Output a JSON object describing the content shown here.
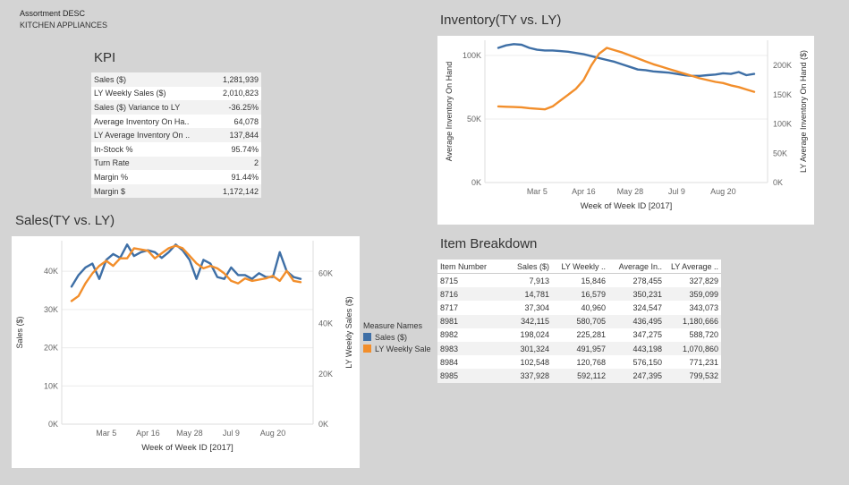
{
  "header": {
    "title": "Assortment DESC",
    "subtitle": "KITCHEN APPLIANCES"
  },
  "kpi": {
    "title": "KPI",
    "rows": [
      {
        "label": "Sales ($)",
        "value": "1,281,939"
      },
      {
        "label": "LY Weekly Sales ($)",
        "value": "2,010,823"
      },
      {
        "label": "Sales ($) Variance to  LY",
        "value": "-36.25%"
      },
      {
        "label": "Average Inventory On Ha..",
        "value": "64,078"
      },
      {
        "label": "LY Average Inventory On ..",
        "value": "137,844"
      },
      {
        "label": "In-Stock %",
        "value": "95.74%"
      },
      {
        "label": "Turn Rate",
        "value": "2"
      },
      {
        "label": "Margin %",
        "value": "91.44%"
      },
      {
        "label": "Margin $",
        "value": "1,172,142"
      }
    ]
  },
  "item_breakdown": {
    "title": "Item Breakdown",
    "columns": [
      "Item Number",
      "Sales ($)",
      "LY Weekly ..",
      "Average In..",
      "LY Average .."
    ],
    "rows": [
      [
        "8715",
        "7,913",
        "15,846",
        "278,455",
        "327,829"
      ],
      [
        "8716",
        "14,781",
        "16,579",
        "350,231",
        "359,099"
      ],
      [
        "8717",
        "37,304",
        "40,960",
        "324,547",
        "343,073"
      ],
      [
        "8981",
        "342,115",
        "580,705",
        "436,495",
        "1,180,666"
      ],
      [
        "8982",
        "198,024",
        "225,281",
        "347,275",
        "588,720"
      ],
      [
        "8983",
        "301,324",
        "491,957",
        "443,198",
        "1,070,860"
      ],
      [
        "8984",
        "102,548",
        "120,768",
        "576,150",
        "771,231"
      ],
      [
        "8985",
        "337,928",
        "592,112",
        "247,395",
        "799,532"
      ]
    ]
  },
  "legend": {
    "title": "Measure Names",
    "items": [
      {
        "label": "Sales ($)",
        "color": "#3e6fa6"
      },
      {
        "label": "LY Weekly Sale",
        "color": "#f28e2b"
      }
    ]
  },
  "chart_data": [
    {
      "id": "inventory",
      "type": "line",
      "title": "Inventory(TY vs. LY)",
      "xlabel": "Week of Week ID [2017]",
      "x_ticks": [
        "Mar 5",
        "Apr 16",
        "May 28",
        "Jul 9",
        "Aug 20"
      ],
      "x_tick_index": [
        5,
        11,
        17,
        23,
        29
      ],
      "x_count": 34,
      "y_left": {
        "label": "Average Inventory On Hand",
        "ticks": [
          "0K",
          "50K",
          "100K"
        ],
        "tick_values": [
          0,
          50000,
          100000
        ],
        "range": [
          0,
          112000
        ]
      },
      "y_right": {
        "label": "LY Average Inventory On Hand ($)",
        "ticks": [
          "0K",
          "50K",
          "100K",
          "150K",
          "200K"
        ],
        "tick_values": [
          0,
          50000,
          100000,
          150000,
          200000
        ],
        "range": [
          0,
          243000
        ]
      },
      "series": [
        {
          "name": "Sales ($)",
          "axis": "left",
          "color": "#3e6fa6",
          "values": [
            106000,
            108000,
            109000,
            108500,
            106000,
            104500,
            104000,
            104000,
            103500,
            103000,
            102000,
            101000,
            99500,
            98000,
            96500,
            95000,
            93000,
            91000,
            89000,
            88500,
            87500,
            87000,
            86500,
            85500,
            84500,
            84000,
            84000,
            84500,
            85000,
            86000,
            85500,
            87000,
            84500,
            85500
          ]
        },
        {
          "name": "LY Weekly Sale",
          "axis": "right",
          "color": "#f28e2b",
          "values": [
            130000,
            129500,
            129000,
            128500,
            127000,
            126000,
            125000,
            130000,
            140000,
            150000,
            160000,
            175000,
            200000,
            220000,
            230000,
            226000,
            222000,
            217000,
            212000,
            207000,
            202000,
            198000,
            194000,
            190000,
            186000,
            182000,
            178000,
            175000,
            172000,
            170000,
            166000,
            163000,
            159000,
            155000
          ]
        }
      ]
    },
    {
      "id": "sales",
      "type": "line",
      "title": "Sales(TY vs. LY)",
      "xlabel": "Week of Week ID [2017]",
      "x_ticks": [
        "Mar 5",
        "Apr 16",
        "May 28",
        "Jul 9",
        "Aug 20"
      ],
      "x_tick_index": [
        5,
        11,
        17,
        23,
        29
      ],
      "x_count": 34,
      "y_left": {
        "label": "Sales ($)",
        "ticks": [
          "0K",
          "10K",
          "20K",
          "30K",
          "40K"
        ],
        "tick_values": [
          0,
          10000,
          20000,
          30000,
          40000
        ],
        "range": [
          0,
          48000
        ]
      },
      "y_right": {
        "label": "LY Weekly Sales ($)",
        "ticks": [
          "0K",
          "20K",
          "40K",
          "60K"
        ],
        "tick_values": [
          0,
          20000,
          40000,
          60000
        ],
        "range": [
          0,
          73000
        ]
      },
      "series": [
        {
          "name": "Sales ($)",
          "axis": "left",
          "color": "#3e6fa6",
          "values": [
            36000,
            39000,
            41000,
            42000,
            38000,
            43000,
            44500,
            43500,
            47000,
            44000,
            45000,
            45500,
            45000,
            43500,
            45000,
            47000,
            45500,
            43000,
            38000,
            43000,
            42000,
            38500,
            38000,
            41000,
            39000,
            39000,
            38000,
            39500,
            38500,
            38500,
            45000,
            40000,
            38500,
            38000
          ]
        },
        {
          "name": "LY Weekly Sale",
          "axis": "right",
          "color": "#f28e2b",
          "values": [
            49000,
            51000,
            56000,
            60000,
            63000,
            65000,
            63000,
            66000,
            66000,
            70000,
            69500,
            69000,
            66000,
            68000,
            70000,
            71000,
            70000,
            67000,
            64000,
            62000,
            63000,
            62000,
            60000,
            57000,
            56000,
            58000,
            57000,
            57500,
            58000,
            59000,
            57000,
            61000,
            57000,
            56500
          ]
        }
      ]
    }
  ]
}
